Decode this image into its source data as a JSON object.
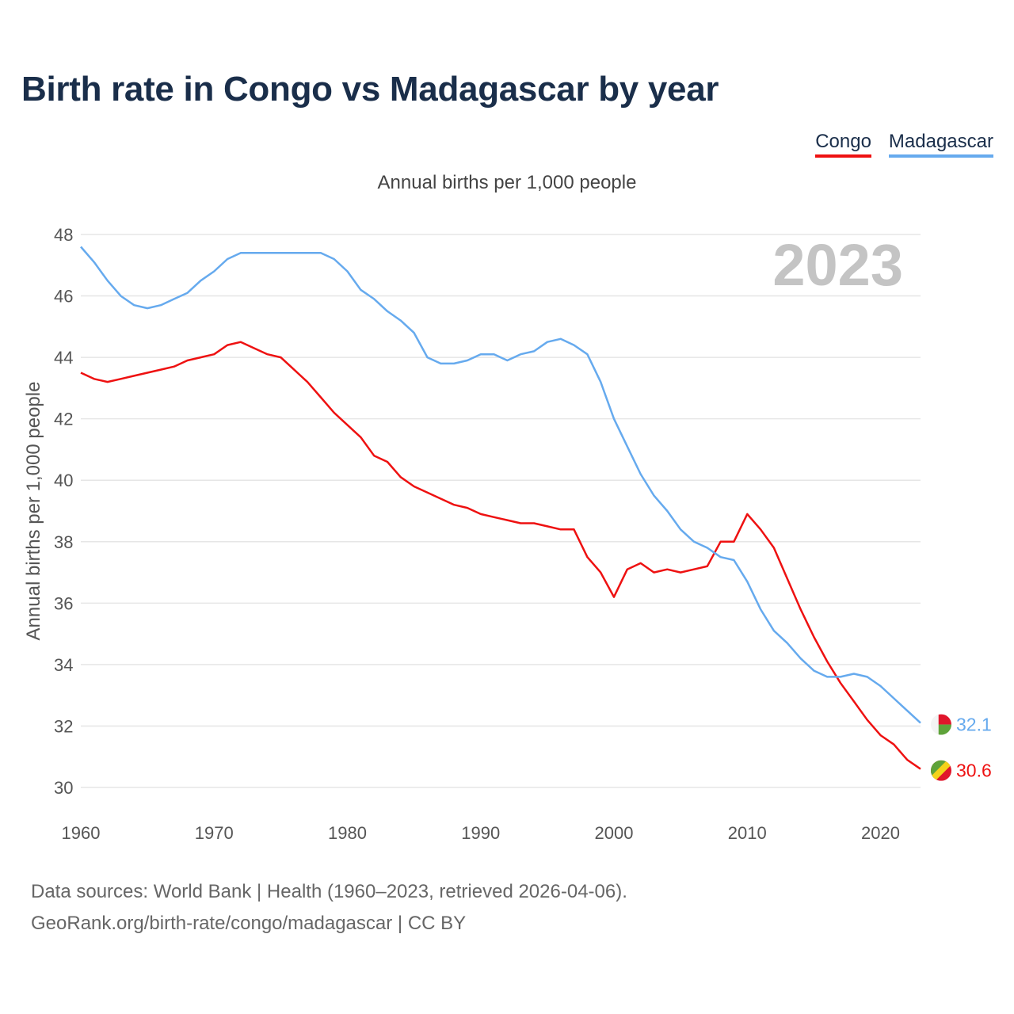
{
  "title": "Birth rate in Congo vs Madagascar by year",
  "subtitle": "Annual births per 1,000 people",
  "legend": [
    {
      "label": "Congo",
      "color": "#ee1111"
    },
    {
      "label": "Madagascar",
      "color": "#66aaee"
    }
  ],
  "year_label": "2023",
  "source": {
    "line1": "Data sources: World Bank | Health (1960–2023, retrieved 2026-04-06).",
    "line2": "GeoRank.org/birth-rate/congo/madagascar | CC BY"
  },
  "chart_data": {
    "type": "line",
    "title": "Birth rate in Congo vs Madagascar by year",
    "xlabel": "",
    "ylabel": "Annual births per 1,000 people",
    "xlim": [
      1960,
      2023
    ],
    "ylim": [
      30,
      48
    ],
    "x_ticks": [
      1960,
      1970,
      1980,
      1990,
      2000,
      2010,
      2020
    ],
    "y_ticks": [
      30,
      32,
      34,
      36,
      38,
      40,
      42,
      44,
      46,
      48
    ],
    "grid": true,
    "legend_position": "top-right",
    "x": [
      1960,
      1961,
      1962,
      1963,
      1964,
      1965,
      1966,
      1967,
      1968,
      1969,
      1970,
      1971,
      1972,
      1973,
      1974,
      1975,
      1976,
      1977,
      1978,
      1979,
      1980,
      1981,
      1982,
      1983,
      1984,
      1985,
      1986,
      1987,
      1988,
      1989,
      1990,
      1991,
      1992,
      1993,
      1994,
      1995,
      1996,
      1997,
      1998,
      1999,
      2000,
      2001,
      2002,
      2003,
      2004,
      2005,
      2006,
      2007,
      2008,
      2009,
      2010,
      2011,
      2012,
      2013,
      2014,
      2015,
      2016,
      2017,
      2018,
      2019,
      2020,
      2021,
      2022,
      2023
    ],
    "series": [
      {
        "name": "Congo",
        "color": "#ee1111",
        "end_label": "30.6",
        "values": [
          43.5,
          43.3,
          43.2,
          43.3,
          43.4,
          43.5,
          43.6,
          43.7,
          43.9,
          44.0,
          44.1,
          44.4,
          44.5,
          44.3,
          44.1,
          44.0,
          43.6,
          43.2,
          42.7,
          42.2,
          41.8,
          41.4,
          40.8,
          40.6,
          40.1,
          39.8,
          39.6,
          39.4,
          39.2,
          39.1,
          38.9,
          38.8,
          38.7,
          38.6,
          38.6,
          38.5,
          38.4,
          38.4,
          37.5,
          37.0,
          36.2,
          37.1,
          37.3,
          37.0,
          37.1,
          37.0,
          37.1,
          37.2,
          38.0,
          38.0,
          38.9,
          38.4,
          37.8,
          36.8,
          35.8,
          34.9,
          34.1,
          33.4,
          32.8,
          32.2,
          31.7,
          31.4,
          30.9,
          30.6
        ]
      },
      {
        "name": "Madagascar",
        "color": "#66aaee",
        "end_label": "32.1",
        "values": [
          47.6,
          47.1,
          46.5,
          46.0,
          45.7,
          45.6,
          45.7,
          45.9,
          46.1,
          46.5,
          46.8,
          47.2,
          47.4,
          47.4,
          47.4,
          47.4,
          47.4,
          47.4,
          47.4,
          47.2,
          46.8,
          46.2,
          45.9,
          45.5,
          45.2,
          44.8,
          44.0,
          43.8,
          43.8,
          43.9,
          44.1,
          44.1,
          43.9,
          44.1,
          44.2,
          44.5,
          44.6,
          44.4,
          44.1,
          43.2,
          42.0,
          41.1,
          40.2,
          39.5,
          39.0,
          38.4,
          38.0,
          37.8,
          37.5,
          37.4,
          36.7,
          35.8,
          35.1,
          34.7,
          34.2,
          33.8,
          33.6,
          33.6,
          33.7,
          33.6,
          33.3,
          32.9,
          32.5,
          32.1
        ]
      }
    ]
  }
}
